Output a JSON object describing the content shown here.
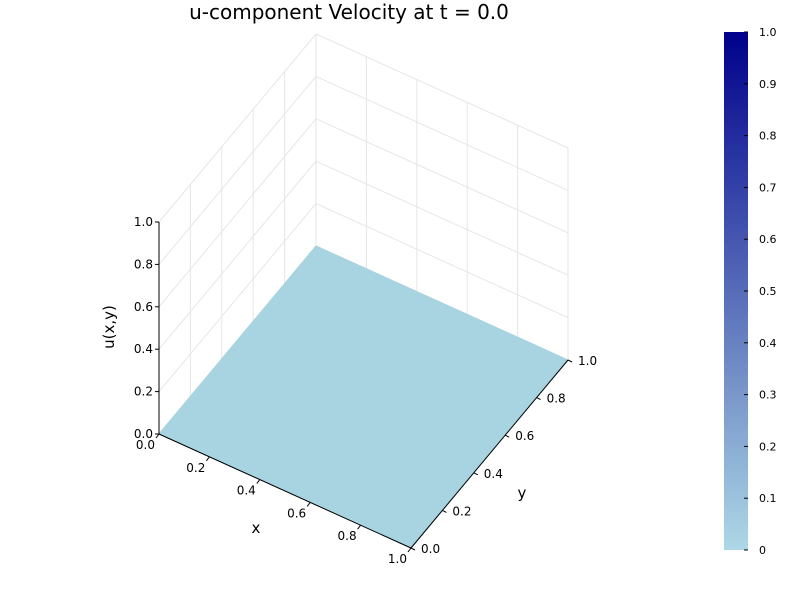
{
  "chart_data": {
    "type": "surface",
    "title": "u-component Velocity at t = 0.0",
    "xlabel": "x",
    "ylabel": "y",
    "zlabel": "u(x,y)",
    "xlim": [
      0,
      1
    ],
    "ylim": [
      0,
      1
    ],
    "zlim": [
      0,
      1
    ],
    "xticks": [
      "0.0",
      "0.2",
      "0.4",
      "0.6",
      "0.8",
      "1.0"
    ],
    "yticks": [
      "0.0",
      "0.2",
      "0.4",
      "0.6",
      "0.8",
      "1.0"
    ],
    "zticks": [
      "0.0",
      "0.2",
      "0.4",
      "0.6",
      "0.8",
      "1.0"
    ],
    "grid": true,
    "surface": {
      "x": [
        0,
        1
      ],
      "y": [
        0,
        1
      ],
      "z": [
        [
          0,
          0
        ],
        [
          0,
          0
        ]
      ],
      "color": "#a8d3e0"
    },
    "colorbar": {
      "limits": [
        0,
        1
      ],
      "tick_values": [
        0,
        0.1,
        0.2,
        0.3,
        0.4,
        0.5,
        0.6,
        0.7,
        0.8,
        0.9,
        1.0
      ],
      "tick_labels": [
        "0",
        "0.1",
        "0.2",
        "0.3",
        "0.4",
        "0.5",
        "0.6",
        "0.7",
        "0.8",
        "0.9",
        "1.0"
      ],
      "color_low": "#add8e6",
      "color_high": "#00008b"
    }
  }
}
